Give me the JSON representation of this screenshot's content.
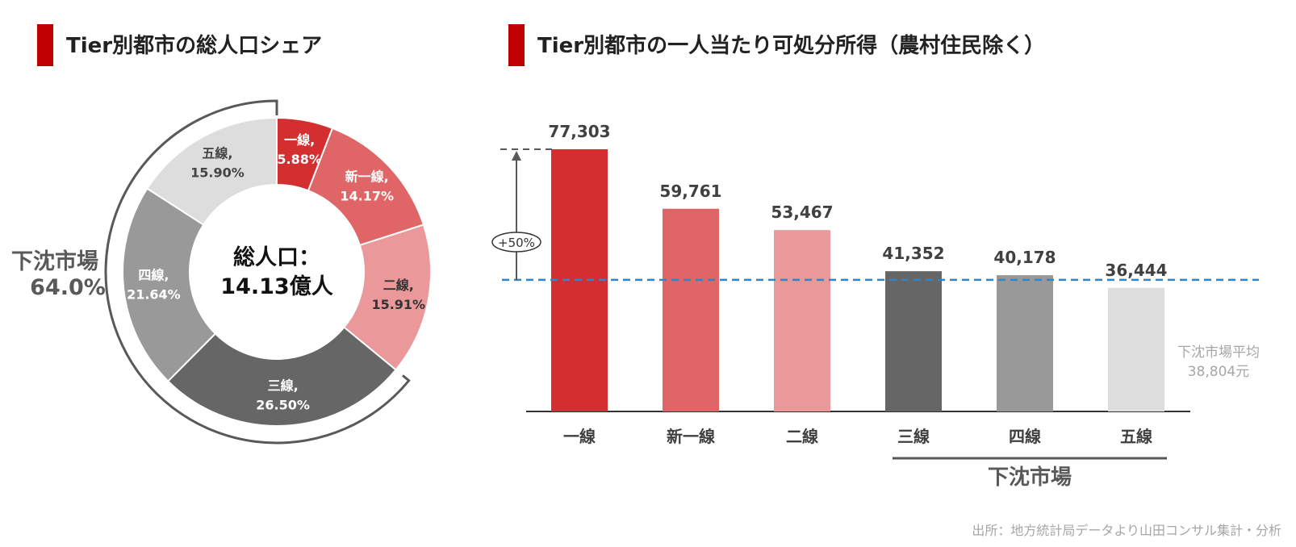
{
  "left_title": "Tier別都市の総人口シェア",
  "right_title": "Tier別都市の一人当たり可処分所得（農村住民除く）",
  "source": "出所：地方統計局データより山田コンサル集計・分析",
  "chart_data": [
    {
      "type": "pie",
      "title": "Tier別都市の総人口シェア",
      "center_label_line1": "総人口：",
      "center_label_line2": "14.13億人",
      "slices": [
        {
          "name": "一線,",
          "value_text": "5.88%",
          "value": 5.88,
          "color": "#d42f30",
          "text_color": "#ffffff"
        },
        {
          "name": "新一線,",
          "value_text": "14.17%",
          "value": 14.17,
          "color": "#e06566",
          "text_color": "#ffffff"
        },
        {
          "name": "二線,",
          "value_text": "15.91%",
          "value": 15.91,
          "color": "#ea9899",
          "text_color": "#333333"
        },
        {
          "name": "三線,",
          "value_text": "26.50%",
          "value": 26.5,
          "color": "#666666",
          "text_color": "#ffffff"
        },
        {
          "name": "四線,",
          "value_text": "21.64%",
          "value": 21.64,
          "color": "#999999",
          "text_color": "#ffffff"
        },
        {
          "name": "五線,",
          "value_text": "15.90%",
          "value": 15.9,
          "color": "#dddddd",
          "text_color": "#444444"
        }
      ],
      "group_label": "下沈市場",
      "group_value": "64.0%"
    },
    {
      "type": "bar",
      "title": "Tier別都市の一人当たり可処分所得（農村住民除く）",
      "categories": [
        "一線",
        "新一線",
        "二線",
        "三線",
        "四線",
        "五線"
      ],
      "values": [
        77303,
        59761,
        53467,
        41352,
        40178,
        36444
      ],
      "value_labels": [
        "77,303",
        "59,761",
        "53,467",
        "41,352",
        "40,178",
        "36,444"
      ],
      "colors": [
        "#d42f30",
        "#e06566",
        "#ea9899",
        "#666666",
        "#999999",
        "#dddddd"
      ],
      "ylim": [
        0,
        80000
      ],
      "average_value": 38804,
      "average_label_line1": "下沈市場平均",
      "average_label_line2": "38,804元",
      "annotation": "+50%",
      "group_label": "下沈市場"
    }
  ]
}
